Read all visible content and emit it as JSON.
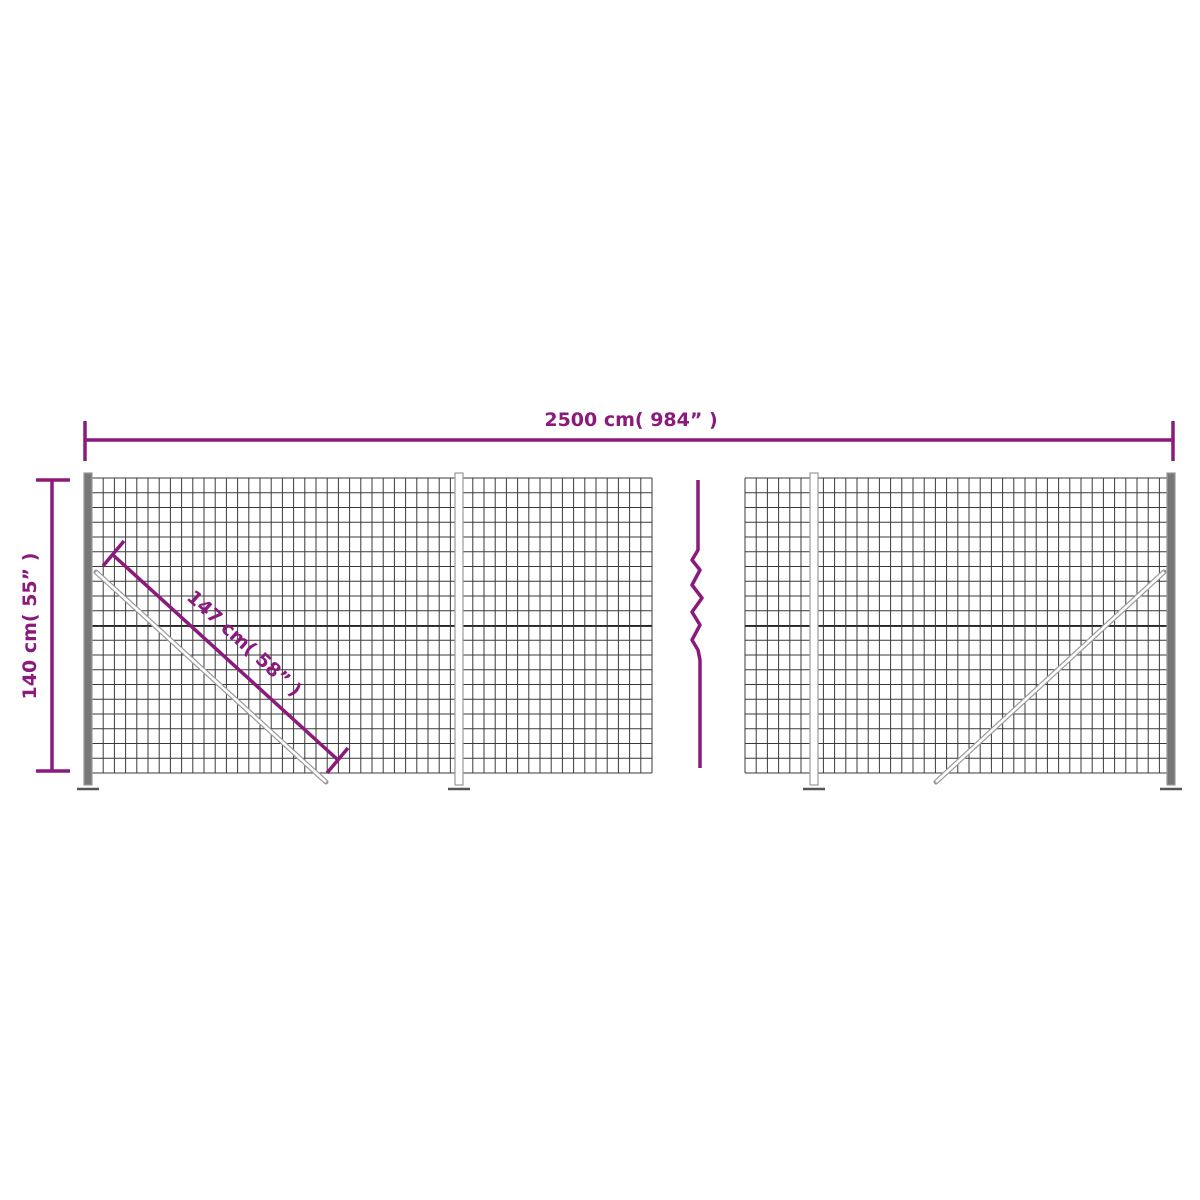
{
  "colors": {
    "dimension": "#8a1a7c",
    "mesh": "#3a3a3a",
    "post": "#9a9a9a"
  },
  "dimensions": {
    "length_label": "2500 cm( 984” )",
    "height_label": "140 cm( 55” )",
    "brace_label": "147 cm( 58” )"
  },
  "icons": {
    "break_symbol": "zigzag-break-icon"
  }
}
